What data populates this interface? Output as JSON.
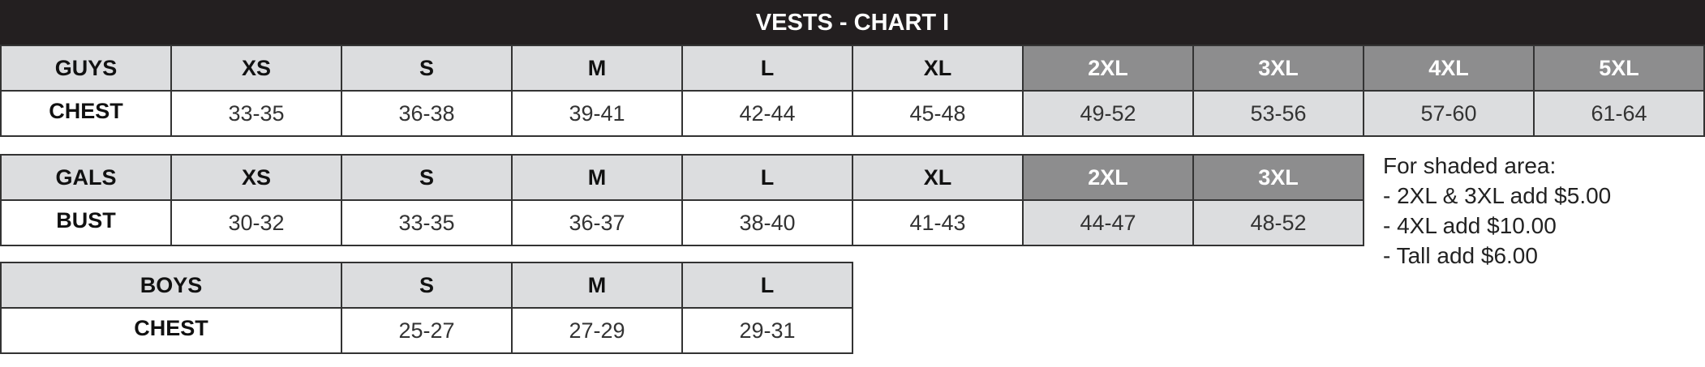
{
  "title": "VESTS - CHART I",
  "tables": [
    {
      "header": [
        "GUYS",
        "XS",
        "S",
        "M",
        "L",
        "XL",
        "2XL",
        "3XL",
        "4XL",
        "5XL"
      ],
      "row": [
        "CHEST",
        "33-35",
        "36-38",
        "39-41",
        "42-44",
        "45-48",
        "49-52",
        "53-56",
        "57-60",
        "61-64"
      ]
    },
    {
      "header": [
        "GALS",
        "XS",
        "S",
        "M",
        "L",
        "XL",
        "2XL",
        "3XL"
      ],
      "row": [
        "BUST",
        "30-32",
        "33-35",
        "36-37",
        "38-40",
        "41-43",
        "44-47",
        "48-52"
      ]
    },
    {
      "header": [
        "BOYS",
        "S",
        "M",
        "L"
      ],
      "row": [
        "CHEST",
        "25-27",
        "27-29",
        "29-31"
      ]
    }
  ],
  "notes": [
    "For shaded area:",
    "- 2XL & 3XL add $5.00",
    "- 4XL add $10.00",
    "- Tall add $6.00"
  ]
}
